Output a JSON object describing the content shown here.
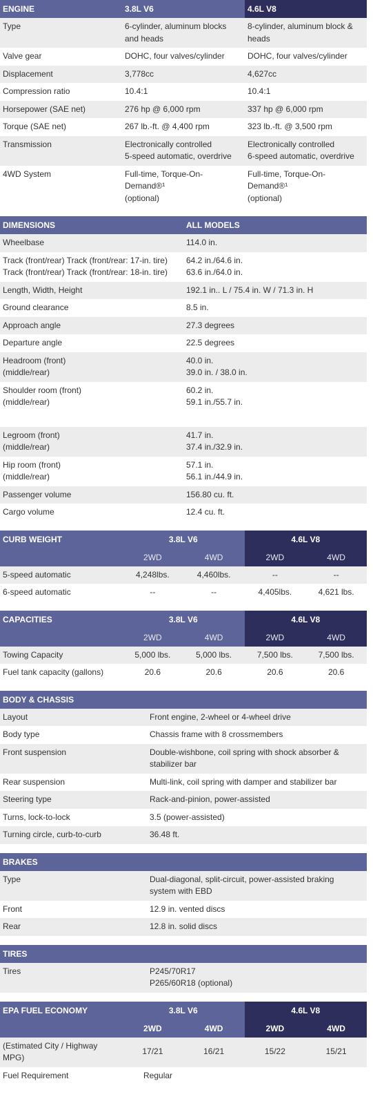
{
  "sections": [
    {
      "title": "ENGINE",
      "headers": [
        "3.8L V6",
        "4.6L V8"
      ],
      "rows": [
        [
          "Type",
          [
            "6-cylinder, aluminum blocks",
            "and heads"
          ],
          [
            "8-cylinder, aluminum block &",
            "heads"
          ]
        ],
        [
          "Valve gear",
          "DOHC, four valves/cylinder",
          "DOHC, four valves/cylinder"
        ],
        [
          "Displacement",
          "3,778cc",
          "4,627cc"
        ],
        [
          "Compression ratio",
          "10.4:1",
          "10.4:1"
        ],
        [
          "Horsepower (SAE net)",
          "276 hp @ 6,000 rpm",
          "337 hp @ 6,000 rpm"
        ],
        [
          "Torque (SAE net)",
          "267 lb.-ft. @ 4,400 rpm",
          "323 lb.-ft. @ 3,500 rpm"
        ],
        [
          "Transmission",
          [
            "Electronically controlled",
            "5-speed automatic, overdrive"
          ],
          [
            "Electronically controlled",
            "6-speed automatic, overdrive"
          ]
        ],
        [
          "4WD System",
          [
            "Full-time, Torque-On-",
            "Demand®¹",
            "(optional)"
          ],
          [
            "Full-time, Torque-On-",
            "Demand®¹",
            "(optional)"
          ]
        ]
      ]
    },
    {
      "title": "DIMENSIONS",
      "headers": [
        "ALL MODELS"
      ],
      "rows": [
        [
          "Wheelbase",
          "114.0 in."
        ],
        [
          [
            "Track (front/rear) Track (front/rear: 17-in. tire)",
            "Track (front/rear) Track (front/rear: 18-in. tire)"
          ],
          [
            "64.2 in./64.6 in.",
            "63.6 in./64.0 in."
          ]
        ],
        [
          "Length, Width, Height",
          "192.1 in.. L / 75.4 in. W / 71.3 in. H"
        ],
        [
          "Ground clearance",
          "8.5 in."
        ],
        [
          "Approach angle",
          "27.3 degrees"
        ],
        [
          "Departure angle",
          "22.5 degrees"
        ],
        [
          [
            "Headroom (front)",
            "(middle/rear)"
          ],
          [
            "40.0 in.",
            "39.0 in. / 38.0 in."
          ]
        ],
        [
          [
            "Shoulder room (front)",
            "(middle/rear)"
          ],
          [
            "60.2 in.",
            "59.1 in./55.7 in."
          ]
        ],
        [
          [
            "Legroom (front)",
            "(middle/rear)"
          ],
          [
            "41.7 in.",
            "37.4 in./32.9 in."
          ]
        ],
        [
          [
            "Hip room (front)",
            "(middle/rear)"
          ],
          [
            "57.1 in.",
            "56.1 in./44.9 in."
          ]
        ],
        [
          "Passenger volume",
          "156.80 cu. ft."
        ],
        [
          "Cargo volume",
          "12.4 cu. ft."
        ]
      ]
    },
    {
      "title": "CURB WEIGHT",
      "headers": [
        "3.8L V6",
        "4.6L V8"
      ],
      "subheaders": [
        "2WD",
        "4WD",
        "2WD",
        "4WD"
      ],
      "rows": [
        [
          "5-speed automatic",
          "4,248lbs.",
          "4,460lbs.",
          "--",
          "--"
        ],
        [
          "6-speed automatic",
          "--",
          "--",
          "4,405lbs.",
          "4,621 lbs."
        ]
      ]
    },
    {
      "title": "CAPACITIES",
      "headers": [
        "3.8L V6",
        "4.6L V8"
      ],
      "subheaders": [
        "2WD",
        "4WD",
        "2WD",
        "4WD"
      ],
      "rows": [
        [
          "Towing Capacity",
          "5,000 lbs.",
          "5,000 lbs.",
          "7,500 lbs.",
          "7,500 lbs."
        ],
        [
          "Fuel tank capacity (gallons)",
          "20.6",
          "20.6",
          "20.6",
          "20.6"
        ]
      ]
    },
    {
      "title": "BODY & CHASSIS",
      "rows": [
        [
          "Layout",
          "Front engine, 2-wheel or 4-wheel drive"
        ],
        [
          "Body type",
          "Chassis frame with 8 crossmembers"
        ],
        [
          "Front suspension",
          [
            "Double-wishbone, coil spring with shock absorber &",
            "stabilizer bar"
          ]
        ],
        [
          "Rear suspension",
          "Multi-link, coil spring with damper and stabilizer bar"
        ],
        [
          "Steering type",
          "Rack-and-pinion, power-assisted"
        ],
        [
          "Turns, lock-to-lock",
          "3.5 (power-assisted)"
        ],
        [
          "Turning circle, curb-to-curb",
          "36.48 ft."
        ]
      ]
    },
    {
      "title": "BRAKES",
      "rows": [
        [
          "Type",
          [
            "Dual-diagonal, split-circuit, power-assisted braking",
            "system with EBD"
          ]
        ],
        [
          "Front",
          "12.9 in. vented discs"
        ],
        [
          "Rear",
          "12.8 in. solid discs"
        ]
      ]
    },
    {
      "title": "TIRES",
      "rows": [
        [
          "Tires",
          [
            "P245/70R17",
            "P265/60R18 (optional)"
          ]
        ]
      ]
    },
    {
      "title": "EPA FUEL ECONOMY",
      "headers": [
        "3.8L V6",
        "4.6L V8"
      ],
      "subheaders": [
        "2WD",
        "4WD",
        "2WD",
        "4WD"
      ],
      "rows": [
        [
          [
            "(Estimated City / Highway",
            "MPG)"
          ],
          "17/21",
          "16/21",
          "15/22",
          "15/21"
        ],
        [
          "Fuel Requirement",
          "Regular"
        ]
      ]
    }
  ]
}
